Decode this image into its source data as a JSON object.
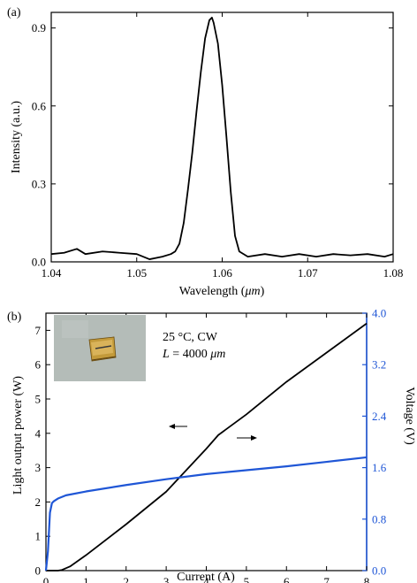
{
  "chart_data": [
    {
      "type": "line",
      "panel_label": "(a)",
      "xlabel_prefix": "Wavelength (",
      "xlabel_unit": "μm",
      "xlabel_suffix": ")",
      "ylabel": "Intensity (a.u.)",
      "xlim": [
        1.04,
        1.08
      ],
      "ylim": [
        0.0,
        0.96
      ],
      "xticks": [
        1.04,
        1.05,
        1.06,
        1.07,
        1.08
      ],
      "xtick_labels": [
        "1.04",
        "1.05",
        "1.06",
        "1.07",
        "1.08"
      ],
      "yticks": [
        0.0,
        0.3,
        0.6,
        0.9
      ],
      "ytick_labels": [
        "0.0",
        "0.3",
        "0.6",
        "0.9"
      ],
      "series": [
        {
          "color": "#000000",
          "x": [
            1.04,
            1.0415,
            1.043,
            1.044,
            1.046,
            1.048,
            1.05,
            1.0515,
            1.053,
            1.054,
            1.0545,
            1.055,
            1.0555,
            1.056,
            1.0565,
            1.057,
            1.0575,
            1.058,
            1.0585,
            1.0588,
            1.059,
            1.0595,
            1.06,
            1.0605,
            1.061,
            1.0615,
            1.062,
            1.063,
            1.065,
            1.067,
            1.069,
            1.071,
            1.073,
            1.075,
            1.077,
            1.079,
            1.08
          ],
          "y": [
            0.03,
            0.035,
            0.05,
            0.03,
            0.04,
            0.035,
            0.03,
            0.01,
            0.02,
            0.03,
            0.04,
            0.07,
            0.15,
            0.28,
            0.42,
            0.58,
            0.73,
            0.86,
            0.93,
            0.94,
            0.92,
            0.84,
            0.68,
            0.48,
            0.27,
            0.1,
            0.04,
            0.02,
            0.03,
            0.02,
            0.03,
            0.02,
            0.03,
            0.025,
            0.03,
            0.02,
            0.03
          ]
        }
      ]
    },
    {
      "type": "line",
      "panel_label": "(b)",
      "xlabel": "Current (A)",
      "ylabel": "Light output power (W)",
      "y2label": "Voltage (V)",
      "xlim": [
        0,
        8
      ],
      "ylim": [
        0,
        7.5
      ],
      "y2lim": [
        0,
        4.0
      ],
      "xticks": [
        0,
        1,
        2,
        3,
        4,
        5,
        6,
        7,
        8
      ],
      "xtick_labels": [
        "0",
        "1",
        "2",
        "3",
        "4",
        "5",
        "6",
        "7",
        "8"
      ],
      "yticks": [
        0,
        1,
        2,
        3,
        4,
        5,
        6,
        7
      ],
      "ytick_labels": [
        "0",
        "1",
        "2",
        "3",
        "4",
        "5",
        "6",
        "7"
      ],
      "y2ticks": [
        0.0,
        0.8,
        1.6,
        2.4,
        3.2,
        4.0
      ],
      "y2tick_labels": [
        "0.0",
        "0.8",
        "1.6",
        "2.4",
        "3.2",
        "4.0"
      ],
      "right_axis_color": "#1f56d6",
      "annotation_line1": "25 °C, CW",
      "annotation_line2_italic": "L",
      "annotation_line2_mid": " = 4000 ",
      "annotation_line2_unit": "μm",
      "inset_photo": "laser chip photo",
      "series": [
        {
          "axis": "left",
          "color": "#000000",
          "x": [
            0.0,
            0.3,
            0.4,
            0.6,
            1,
            2,
            3,
            4,
            4.3,
            5,
            6,
            7,
            8
          ],
          "y": [
            0.0,
            0.0,
            0.02,
            0.12,
            0.45,
            1.35,
            2.3,
            3.55,
            3.95,
            4.55,
            5.5,
            6.35,
            7.2
          ]
        },
        {
          "axis": "right",
          "color": "#1f56d6",
          "x": [
            0.0,
            0.05,
            0.1,
            0.15,
            0.2,
            0.3,
            0.5,
            1,
            2,
            3,
            4,
            5,
            6,
            7,
            8
          ],
          "y": [
            0.0,
            0.3,
            0.9,
            1.05,
            1.08,
            1.12,
            1.17,
            1.23,
            1.33,
            1.42,
            1.5,
            1.56,
            1.62,
            1.69,
            1.76
          ]
        }
      ]
    }
  ]
}
